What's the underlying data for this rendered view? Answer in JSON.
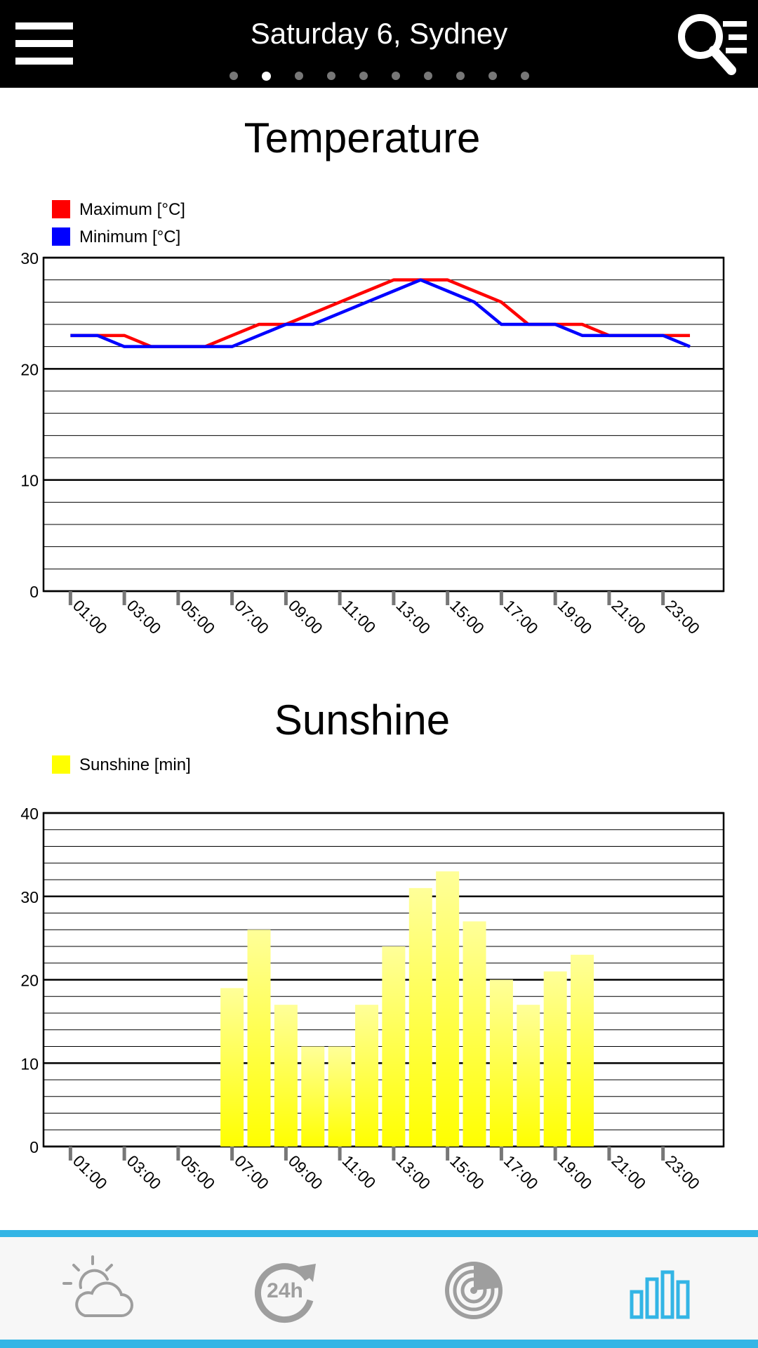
{
  "header": {
    "title": "Saturday 6, Sydney",
    "page_count": 10,
    "active_page": 1,
    "menu_icon": "hamburger-menu-icon",
    "search_icon": "search-list-icon"
  },
  "colors": {
    "max": "#ff0000",
    "min": "#0000ff",
    "sunshine": "#ffff00",
    "accent": "#33b5e5",
    "nav_inactive": "#9e9e9e"
  },
  "chart_data": [
    {
      "type": "line",
      "title": "Temperature",
      "legend_placement": "top-left",
      "grid": true,
      "ylim": [
        0,
        30
      ],
      "yticks": [
        0,
        10,
        20,
        30
      ],
      "x": [
        "01:00",
        "02:00",
        "03:00",
        "04:00",
        "05:00",
        "06:00",
        "07:00",
        "08:00",
        "09:00",
        "10:00",
        "11:00",
        "12:00",
        "13:00",
        "14:00",
        "15:00",
        "16:00",
        "17:00",
        "18:00",
        "19:00",
        "20:00",
        "21:00",
        "22:00",
        "23:00",
        "24:00"
      ],
      "xtick_labels": [
        "01:00",
        "03:00",
        "05:00",
        "07:00",
        "09:00",
        "11:00",
        "13:00",
        "15:00",
        "17:00",
        "19:00",
        "21:00",
        "23:00"
      ],
      "series": [
        {
          "name": "Maximum [°C]",
          "color": "#ff0000",
          "values": [
            23,
            23,
            23,
            22,
            22,
            22,
            23,
            24,
            24,
            25,
            26,
            27,
            28,
            28,
            28,
            27,
            26,
            24,
            24,
            24,
            23,
            23,
            23,
            23
          ]
        },
        {
          "name": "Minimum [°C]",
          "color": "#0000ff",
          "values": [
            23,
            23,
            22,
            22,
            22,
            22,
            22,
            23,
            24,
            24,
            25,
            26,
            27,
            28,
            27,
            26,
            24,
            24,
            24,
            23,
            23,
            23,
            23,
            22
          ]
        }
      ]
    },
    {
      "type": "bar",
      "title": "Sunshine",
      "legend_placement": "top-left",
      "grid": true,
      "ylim": [
        0,
        40
      ],
      "yticks": [
        0,
        10,
        20,
        30,
        40
      ],
      "x": [
        "01:00",
        "02:00",
        "03:00",
        "04:00",
        "05:00",
        "06:00",
        "07:00",
        "08:00",
        "09:00",
        "10:00",
        "11:00",
        "12:00",
        "13:00",
        "14:00",
        "15:00",
        "16:00",
        "17:00",
        "18:00",
        "19:00",
        "20:00",
        "21:00",
        "22:00",
        "23:00",
        "24:00"
      ],
      "xtick_labels": [
        "01:00",
        "03:00",
        "05:00",
        "07:00",
        "09:00",
        "11:00",
        "13:00",
        "15:00",
        "17:00",
        "19:00",
        "21:00",
        "23:00"
      ],
      "series": [
        {
          "name": "Sunshine [min]",
          "color": "#ffff00",
          "values": [
            0,
            0,
            0,
            0,
            0,
            0,
            19,
            26,
            17,
            12,
            12,
            17,
            24,
            31,
            33,
            27,
            20,
            17,
            21,
            23,
            0,
            0,
            0,
            0
          ]
        }
      ]
    }
  ],
  "bottom_nav": [
    {
      "icon": "partly-cloudy-icon",
      "active": false
    },
    {
      "icon": "24h-forecast-icon",
      "active": false
    },
    {
      "icon": "radar-icon",
      "active": false
    },
    {
      "icon": "bar-chart-icon",
      "active": true
    }
  ]
}
